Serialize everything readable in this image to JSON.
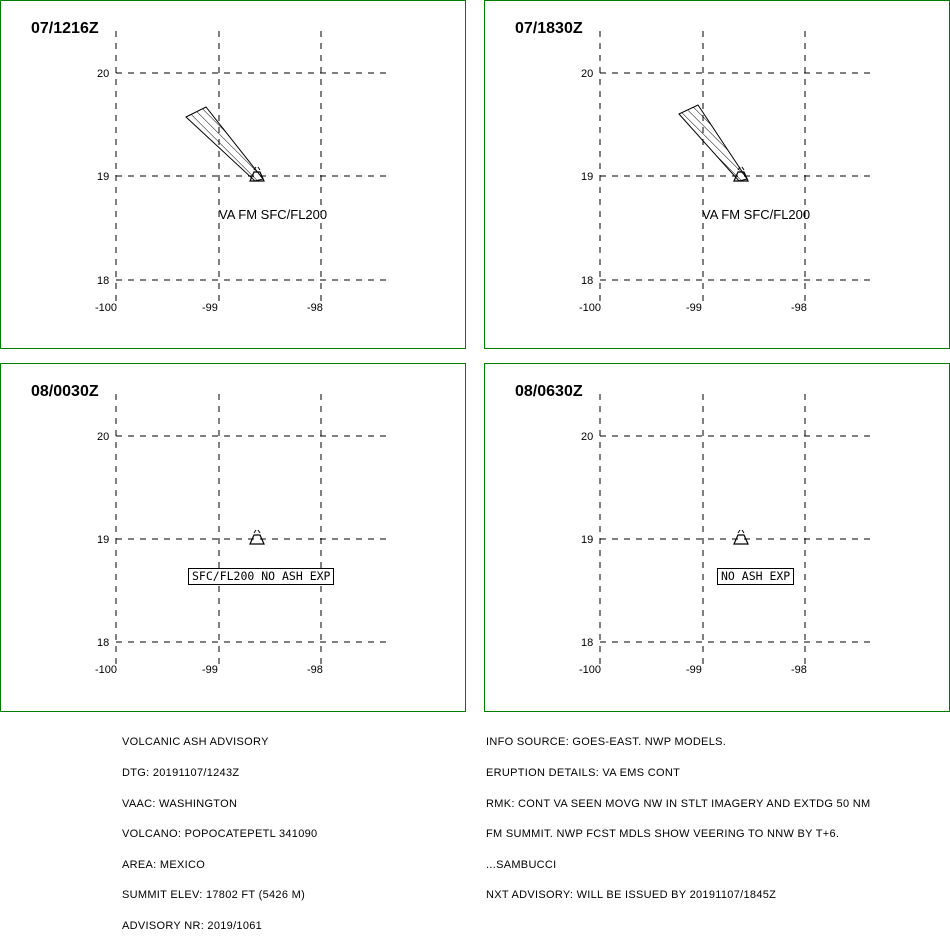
{
  "panels": [
    {
      "time": "07/1216Z",
      "label_type": "plain",
      "label": "VA FM SFC/FL200",
      "has_plume": true,
      "y_ticks": [
        "20",
        "19",
        "18"
      ],
      "x_ticks": [
        "-100",
        "-99",
        "-98"
      ]
    },
    {
      "time": "07/1830Z",
      "label_type": "plain",
      "label": "VA FM SFC/FL200",
      "has_plume": true,
      "y_ticks": [
        "20",
        "19",
        "18"
      ],
      "x_ticks": [
        "-100",
        "-99",
        "-98"
      ]
    },
    {
      "time": "08/0030Z",
      "label_type": "box",
      "label": "SFC/FL200 NO ASH EXP",
      "has_plume": false,
      "y_ticks": [
        "20",
        "19",
        "18"
      ],
      "x_ticks": [
        "-100",
        "-99",
        "-98"
      ]
    },
    {
      "time": "08/0630Z",
      "label_type": "box",
      "label": "NO ASH EXP",
      "has_plume": false,
      "y_ticks": [
        "20",
        "19",
        "18"
      ],
      "x_ticks": [
        "-100",
        "-99",
        "-98"
      ]
    }
  ],
  "advisory_left": [
    "VOLCANIC ASH ADVISORY",
    "DTG: 20191107/1243Z",
    "VAAC: WASHINGTON",
    "VOLCANO: POPOCATEPETL 341090",
    "AREA: MEXICO",
    "SUMMIT ELEV: 17802 FT (5426 M)",
    "ADVISORY NR: 2019/1061"
  ],
  "advisory_right": [
    "INFO SOURCE: GOES-EAST. NWP MODELS.",
    "ERUPTION DETAILS: VA EMS CONT",
    "RMK: CONT VA SEEN MOVG NW IN STLT IMAGERY AND EXTDG 50 NM",
    "FM SUMMIT. NWP FCST MDLS SHOW VEERING TO NNW BY T+6.",
    "...SAMBUCCI",
    "NXT ADVISORY: WILL BE ISSUED BY 20191107/1845Z"
  ],
  "colors": {
    "border": "#008000",
    "ink": "#000000"
  },
  "icons": {
    "volcano": "volcano-icon"
  }
}
